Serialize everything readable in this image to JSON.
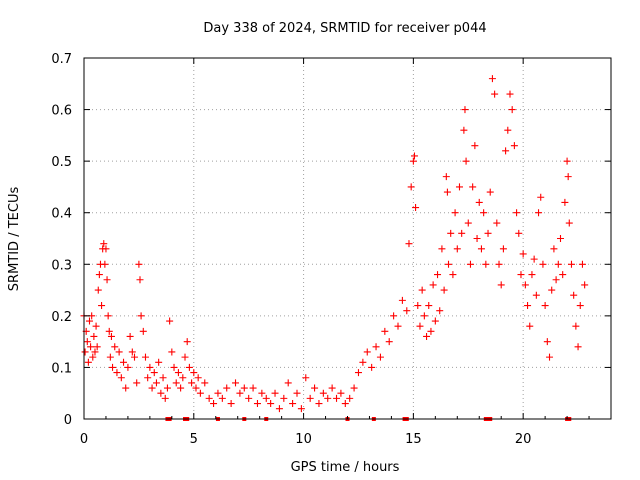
{
  "chart_data": {
    "type": "scatter",
    "title": "Day 338 of 2024, SRMTID for receiver p044",
    "xlabel": "GPS time / hours",
    "ylabel": "SRMTID / TECUs",
    "xlim": [
      0,
      24
    ],
    "ylim": [
      0,
      0.7
    ],
    "x_ticks": [
      0,
      5,
      10,
      15,
      20
    ],
    "y_ticks": [
      0,
      0.1,
      0.2,
      0.3,
      0.4,
      0.5,
      0.6,
      0.7
    ],
    "x_tick_labels": [
      "0",
      "5",
      "10",
      "15",
      "20"
    ],
    "y_tick_labels": [
      "0",
      "0.1",
      "0.2",
      "0.3",
      "0.4",
      "0.5",
      "0.6",
      "0.7"
    ],
    "grid": true,
    "marker": "+",
    "color": "#ff0000",
    "data_gap_markers_x": [
      3.8,
      3.9,
      4.6,
      4.7,
      6.1,
      7.3,
      8.3,
      12.0,
      13.2,
      14.6,
      14.7,
      18.3,
      18.4,
      18.5,
      22.0,
      22.1
    ],
    "series": [
      {
        "name": "SRMTID",
        "points": [
          [
            0.0,
            0.2
          ],
          [
            0.05,
            0.13
          ],
          [
            0.1,
            0.17
          ],
          [
            0.15,
            0.15
          ],
          [
            0.2,
            0.11
          ],
          [
            0.25,
            0.19
          ],
          [
            0.3,
            0.14
          ],
          [
            0.35,
            0.2
          ],
          [
            0.4,
            0.12
          ],
          [
            0.45,
            0.16
          ],
          [
            0.5,
            0.13
          ],
          [
            0.55,
            0.18
          ],
          [
            0.6,
            0.14
          ],
          [
            0.65,
            0.25
          ],
          [
            0.7,
            0.28
          ],
          [
            0.75,
            0.3
          ],
          [
            0.8,
            0.22
          ],
          [
            0.85,
            0.33
          ],
          [
            0.9,
            0.34
          ],
          [
            0.95,
            0.3
          ],
          [
            1.0,
            0.33
          ],
          [
            1.05,
            0.27
          ],
          [
            1.1,
            0.2
          ],
          [
            1.15,
            0.17
          ],
          [
            1.2,
            0.12
          ],
          [
            1.25,
            0.16
          ],
          [
            1.3,
            0.1
          ],
          [
            1.4,
            0.14
          ],
          [
            1.5,
            0.09
          ],
          [
            1.6,
            0.13
          ],
          [
            1.7,
            0.08
          ],
          [
            1.8,
            0.11
          ],
          [
            1.9,
            0.06
          ],
          [
            2.0,
            0.1
          ],
          [
            2.1,
            0.16
          ],
          [
            2.2,
            0.13
          ],
          [
            2.3,
            0.12
          ],
          [
            2.4,
            0.07
          ],
          [
            2.5,
            0.3
          ],
          [
            2.55,
            0.27
          ],
          [
            2.6,
            0.2
          ],
          [
            2.7,
            0.17
          ],
          [
            2.8,
            0.12
          ],
          [
            2.9,
            0.08
          ],
          [
            3.0,
            0.1
          ],
          [
            3.1,
            0.06
          ],
          [
            3.2,
            0.09
          ],
          [
            3.3,
            0.07
          ],
          [
            3.4,
            0.11
          ],
          [
            3.5,
            0.05
          ],
          [
            3.6,
            0.08
          ],
          [
            3.7,
            0.04
          ],
          [
            3.8,
            0.06
          ],
          [
            3.9,
            0.19
          ],
          [
            4.0,
            0.13
          ],
          [
            4.1,
            0.1
          ],
          [
            4.2,
            0.07
          ],
          [
            4.3,
            0.09
          ],
          [
            4.4,
            0.06
          ],
          [
            4.5,
            0.08
          ],
          [
            4.6,
            0.12
          ],
          [
            4.7,
            0.15
          ],
          [
            4.8,
            0.1
          ],
          [
            4.9,
            0.07
          ],
          [
            5.0,
            0.09
          ],
          [
            5.1,
            0.06
          ],
          [
            5.2,
            0.08
          ],
          [
            5.3,
            0.05
          ],
          [
            5.5,
            0.07
          ],
          [
            5.7,
            0.04
          ],
          [
            5.9,
            0.03
          ],
          [
            6.1,
            0.05
          ],
          [
            6.3,
            0.04
          ],
          [
            6.5,
            0.06
          ],
          [
            6.7,
            0.03
          ],
          [
            6.9,
            0.07
          ],
          [
            7.1,
            0.05
          ],
          [
            7.3,
            0.06
          ],
          [
            7.5,
            0.04
          ],
          [
            7.7,
            0.06
          ],
          [
            7.9,
            0.03
          ],
          [
            8.1,
            0.05
          ],
          [
            8.3,
            0.04
          ],
          [
            8.5,
            0.03
          ],
          [
            8.7,
            0.05
          ],
          [
            8.9,
            0.02
          ],
          [
            9.1,
            0.04
          ],
          [
            9.3,
            0.07
          ],
          [
            9.5,
            0.03
          ],
          [
            9.7,
            0.05
          ],
          [
            9.9,
            0.02
          ],
          [
            10.1,
            0.08
          ],
          [
            10.3,
            0.04
          ],
          [
            10.5,
            0.06
          ],
          [
            10.7,
            0.03
          ],
          [
            10.9,
            0.05
          ],
          [
            11.1,
            0.04
          ],
          [
            11.3,
            0.06
          ],
          [
            11.5,
            0.04
          ],
          [
            11.7,
            0.05
          ],
          [
            11.9,
            0.03
          ],
          [
            12.1,
            0.04
          ],
          [
            12.3,
            0.06
          ],
          [
            12.5,
            0.09
          ],
          [
            12.7,
            0.11
          ],
          [
            12.9,
            0.13
          ],
          [
            13.1,
            0.1
          ],
          [
            13.3,
            0.14
          ],
          [
            13.5,
            0.12
          ],
          [
            13.7,
            0.17
          ],
          [
            13.9,
            0.15
          ],
          [
            14.1,
            0.2
          ],
          [
            14.3,
            0.18
          ],
          [
            14.5,
            0.23
          ],
          [
            14.7,
            0.21
          ],
          [
            14.8,
            0.34
          ],
          [
            14.9,
            0.45
          ],
          [
            15.0,
            0.5
          ],
          [
            15.05,
            0.51
          ],
          [
            15.1,
            0.41
          ],
          [
            15.2,
            0.22
          ],
          [
            15.3,
            0.18
          ],
          [
            15.4,
            0.25
          ],
          [
            15.5,
            0.2
          ],
          [
            15.6,
            0.16
          ],
          [
            15.7,
            0.22
          ],
          [
            15.8,
            0.17
          ],
          [
            15.9,
            0.26
          ],
          [
            16.0,
            0.19
          ],
          [
            16.1,
            0.28
          ],
          [
            16.2,
            0.21
          ],
          [
            16.3,
            0.33
          ],
          [
            16.4,
            0.25
          ],
          [
            16.5,
            0.47
          ],
          [
            16.55,
            0.44
          ],
          [
            16.6,
            0.3
          ],
          [
            16.7,
            0.36
          ],
          [
            16.8,
            0.28
          ],
          [
            16.9,
            0.4
          ],
          [
            17.0,
            0.33
          ],
          [
            17.1,
            0.45
          ],
          [
            17.2,
            0.36
          ],
          [
            17.3,
            0.56
          ],
          [
            17.35,
            0.6
          ],
          [
            17.4,
            0.5
          ],
          [
            17.5,
            0.38
          ],
          [
            17.6,
            0.3
          ],
          [
            17.7,
            0.45
          ],
          [
            17.8,
            0.53
          ],
          [
            17.9,
            0.35
          ],
          [
            18.0,
            0.42
          ],
          [
            18.1,
            0.33
          ],
          [
            18.2,
            0.4
          ],
          [
            18.3,
            0.3
          ],
          [
            18.4,
            0.36
          ],
          [
            18.5,
            0.44
          ],
          [
            18.6,
            0.66
          ],
          [
            18.7,
            0.63
          ],
          [
            18.8,
            0.38
          ],
          [
            18.9,
            0.3
          ],
          [
            19.0,
            0.26
          ],
          [
            19.1,
            0.33
          ],
          [
            19.2,
            0.52
          ],
          [
            19.3,
            0.56
          ],
          [
            19.4,
            0.63
          ],
          [
            19.5,
            0.6
          ],
          [
            19.6,
            0.53
          ],
          [
            19.7,
            0.4
          ],
          [
            19.8,
            0.36
          ],
          [
            19.9,
            0.28
          ],
          [
            20.0,
            0.32
          ],
          [
            20.1,
            0.26
          ],
          [
            20.2,
            0.22
          ],
          [
            20.3,
            0.18
          ],
          [
            20.4,
            0.28
          ],
          [
            20.5,
            0.31
          ],
          [
            20.6,
            0.24
          ],
          [
            20.7,
            0.4
          ],
          [
            20.8,
            0.43
          ],
          [
            20.9,
            0.3
          ],
          [
            21.0,
            0.22
          ],
          [
            21.1,
            0.15
          ],
          [
            21.2,
            0.12
          ],
          [
            21.3,
            0.25
          ],
          [
            21.4,
            0.33
          ],
          [
            21.5,
            0.27
          ],
          [
            21.6,
            0.3
          ],
          [
            21.7,
            0.35
          ],
          [
            21.8,
            0.28
          ],
          [
            21.9,
            0.42
          ],
          [
            22.0,
            0.5
          ],
          [
            22.05,
            0.47
          ],
          [
            22.1,
            0.38
          ],
          [
            22.2,
            0.3
          ],
          [
            22.3,
            0.24
          ],
          [
            22.4,
            0.18
          ],
          [
            22.5,
            0.14
          ],
          [
            22.6,
            0.22
          ],
          [
            22.7,
            0.3
          ],
          [
            22.8,
            0.26
          ]
        ]
      }
    ]
  }
}
